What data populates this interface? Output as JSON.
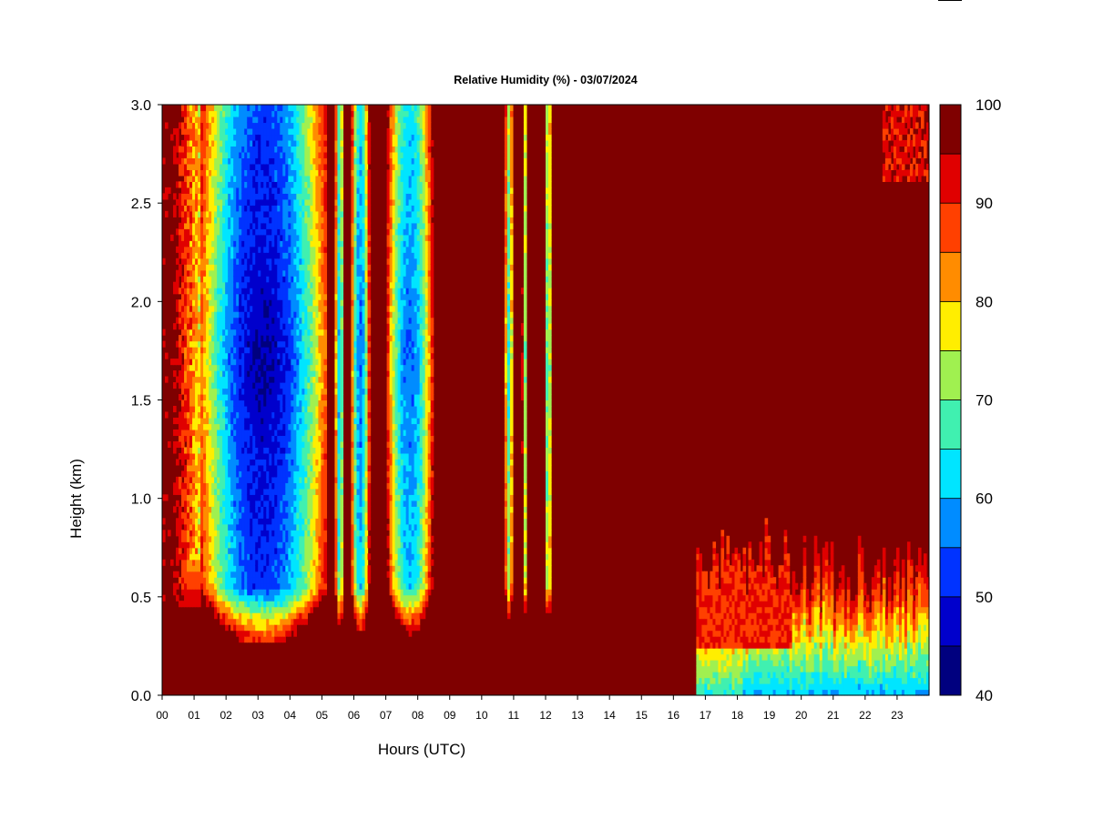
{
  "chart_data": {
    "type": "heatmap",
    "title": "Relative Humidity (%) - 03/07/2024",
    "xlabel": "Hours (UTC)",
    "ylabel": "Height (km)",
    "xlim": [
      0,
      24
    ],
    "ylim": [
      0.0,
      3.0
    ],
    "x_ticks": [
      "00",
      "01",
      "02",
      "03",
      "04",
      "05",
      "06",
      "07",
      "08",
      "09",
      "10",
      "11",
      "12",
      "13",
      "14",
      "15",
      "16",
      "17",
      "18",
      "19",
      "20",
      "21",
      "22",
      "23"
    ],
    "y_ticks": [
      "0.0",
      "0.5",
      "1.0",
      "1.5",
      "2.0",
      "2.5",
      "3.0"
    ],
    "colorbar": {
      "levels": [
        40,
        45,
        50,
        55,
        60,
        65,
        70,
        75,
        80,
        85,
        90,
        95,
        100
      ],
      "colors": [
        "#00007f",
        "#0000cc",
        "#0033ff",
        "#008cff",
        "#00e5ff",
        "#40f0b0",
        "#a0f050",
        "#ffee00",
        "#ff8c00",
        "#ff4000",
        "#e00000",
        "#7f0000"
      ],
      "labels": [
        "40",
        "50",
        "60",
        "70",
        "80",
        "90",
        "100"
      ]
    },
    "background_rh": 100,
    "lower_rh_bands_hours": [
      {
        "from": 1.2,
        "to": 5.1,
        "min_rh": 45
      },
      {
        "from": 5.4,
        "to": 5.7,
        "min_rh": 60
      },
      {
        "from": 5.9,
        "to": 6.5,
        "min_rh": 55
      },
      {
        "from": 7.0,
        "to": 8.5,
        "min_rh": 55
      },
      {
        "from": 10.7,
        "to": 11.0,
        "min_rh": 65
      },
      {
        "from": 11.25,
        "to": 11.45,
        "min_rh": 70
      },
      {
        "from": 11.95,
        "to": 12.2,
        "min_rh": 65
      }
    ],
    "afternoon_surface_layer_rh": [
      {
        "from": 16.7,
        "to": 18.2,
        "min_rh": 65,
        "top_km": 0.85
      },
      {
        "from": 18.2,
        "to": 24.0,
        "min_rh": 60,
        "top_km": 0.9
      }
    ]
  }
}
